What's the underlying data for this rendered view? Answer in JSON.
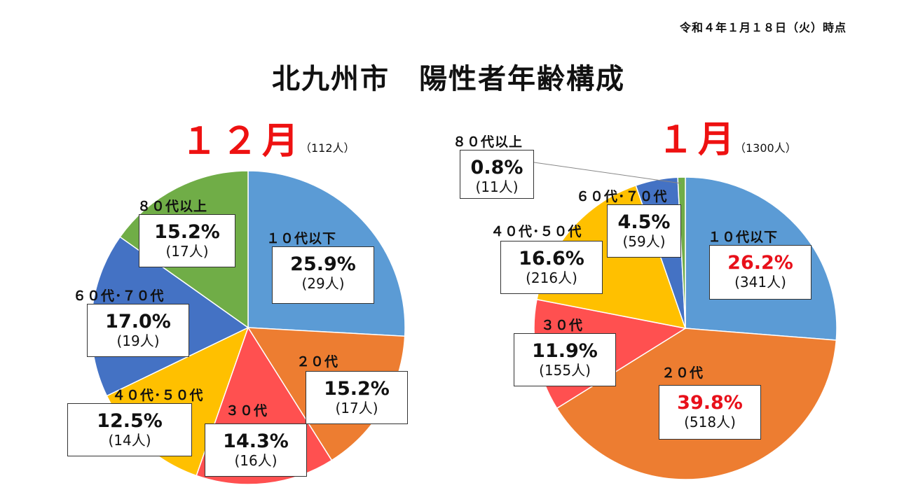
{
  "date_note": "令和４年１月１８日（火）時点",
  "title": "北九州市　陽性者年齢構成",
  "chart_data": [
    {
      "type": "pie",
      "month": "１２月",
      "total": "（112人）",
      "slices": [
        {
          "label": "１０代以下",
          "percent": 25.9,
          "percent_text": "25.9%",
          "count": 29,
          "count_text": "(29人)",
          "color": "#5b9bd5",
          "highlight": false
        },
        {
          "label": "２０代",
          "percent": 15.2,
          "percent_text": "15.2%",
          "count": 17,
          "count_text": "(17人)",
          "color": "#ed7d31",
          "highlight": false
        },
        {
          "label": "３０代",
          "percent": 14.3,
          "percent_text": "14.3%",
          "count": 16,
          "count_text": "(16人)",
          "color": "#ff5050",
          "highlight": false
        },
        {
          "label": "４０代･５０代",
          "percent": 12.5,
          "percent_text": "12.5%",
          "count": 14,
          "count_text": "(14人)",
          "color": "#ffc000",
          "highlight": false
        },
        {
          "label": "６０代･７０代",
          "percent": 17.0,
          "percent_text": "17.0%",
          "count": 19,
          "count_text": "(19人)",
          "color": "#4472c4",
          "highlight": false
        },
        {
          "label": "８０代以上",
          "percent": 15.2,
          "percent_text": "15.2%",
          "count": 17,
          "count_text": "(17人)",
          "color": "#70ad47",
          "highlight": false
        }
      ]
    },
    {
      "type": "pie",
      "month": "１月",
      "total": "（1300人）",
      "slices": [
        {
          "label": "１０代以下",
          "percent": 26.2,
          "percent_text": "26.2%",
          "count": 341,
          "count_text": "(341人)",
          "color": "#5b9bd5",
          "highlight": true
        },
        {
          "label": "２０代",
          "percent": 39.8,
          "percent_text": "39.8%",
          "count": 518,
          "count_text": "(518人)",
          "color": "#ed7d31",
          "highlight": true
        },
        {
          "label": "３０代",
          "percent": 11.9,
          "percent_text": "11.9%",
          "count": 155,
          "count_text": "(155人)",
          "color": "#ff5050",
          "highlight": false
        },
        {
          "label": "４０代･５０代",
          "percent": 16.6,
          "percent_text": "16.6%",
          "count": 216,
          "count_text": "(216人)",
          "color": "#ffc000",
          "highlight": false
        },
        {
          "label": "６０代･７０代",
          "percent": 4.5,
          "percent_text": "4.5%",
          "count": 59,
          "count_text": "(59人)",
          "color": "#4472c4",
          "highlight": false
        },
        {
          "label": "８０代以上",
          "percent": 0.8,
          "percent_text": "0.8%",
          "count": 11,
          "count_text": "(11人)",
          "color": "#70ad47",
          "highlight": false
        }
      ]
    }
  ]
}
